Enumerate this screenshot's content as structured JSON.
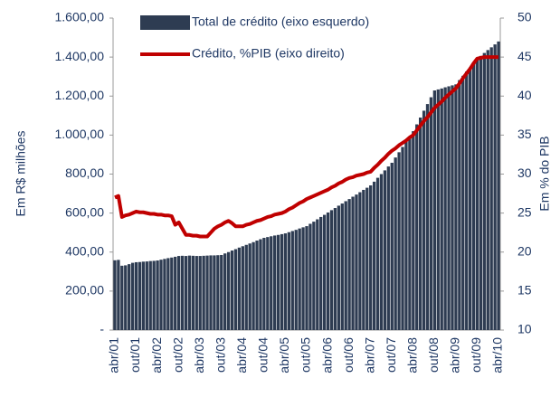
{
  "chart_data": {
    "type": "bar-line",
    "y_label": "Em R$ milhões",
    "y2_label": "Em % do PIB",
    "categories": [
      "abr/01",
      null,
      null,
      null,
      null,
      null,
      "out/01",
      null,
      null,
      null,
      null,
      null,
      "abr/02",
      null,
      null,
      null,
      null,
      null,
      "out/02",
      null,
      null,
      null,
      null,
      null,
      "abr/03",
      null,
      null,
      null,
      null,
      null,
      "out/03",
      null,
      null,
      null,
      null,
      null,
      "abr/04",
      null,
      null,
      null,
      null,
      null,
      "out/04",
      null,
      null,
      null,
      null,
      null,
      "abr/05",
      null,
      null,
      null,
      null,
      null,
      "out/05",
      null,
      null,
      null,
      null,
      null,
      "abr/06",
      null,
      null,
      null,
      null,
      null,
      "out/06",
      null,
      null,
      null,
      null,
      null,
      "abr/07",
      null,
      null,
      null,
      null,
      null,
      "out/07",
      null,
      null,
      null,
      null,
      null,
      "abr/08",
      null,
      null,
      null,
      null,
      null,
      "out/08",
      null,
      null,
      null,
      null,
      null,
      "abr/09",
      null,
      null,
      null,
      null,
      null,
      "out/09",
      null,
      null,
      null,
      null,
      null,
      "abr/10"
    ],
    "series": [
      {
        "name": "Total de crédito (eixo esquerdo)",
        "type": "bar",
        "color": "#2e3c52",
        "values": [
          358,
          360,
          330,
          332,
          338,
          345,
          348,
          349,
          351,
          352,
          354,
          355,
          357,
          361,
          365,
          369,
          372,
          376,
          380,
          381,
          380,
          382,
          381,
          380,
          380,
          381,
          382,
          383,
          383,
          384,
          385,
          393,
          400,
          408,
          415,
          423,
          430,
          437,
          444,
          451,
          459,
          466,
          473,
          477,
          481,
          485,
          488,
          492,
          496,
          502,
          508,
          514,
          521,
          527,
          533,
          545,
          556,
          568,
          580,
          591,
          603,
          615,
          626,
          638,
          649,
          661,
          672,
          684,
          695,
          707,
          719,
          730,
          742,
          761,
          781,
          800,
          819,
          839,
          858,
          885,
          912,
          939,
          966,
          993,
          1020,
          1055,
          1090,
          1125,
          1159,
          1194,
          1229,
          1234,
          1239,
          1245,
          1250,
          1255,
          1260,
          1282,
          1304,
          1326,
          1347,
          1369,
          1391,
          1406,
          1421,
          1436,
          1450,
          1465,
          1480
        ]
      },
      {
        "name": "Crédito, %PIB (eixo direito)",
        "type": "line",
        "axis": "y2",
        "color": "#c00000",
        "values": [
          27,
          27.2,
          24.5,
          24.7,
          24.8,
          25,
          25.2,
          25.1,
          25.1,
          25,
          24.9,
          24.9,
          24.8,
          24.8,
          24.7,
          24.7,
          24.6,
          23.5,
          23.8,
          23,
          22.2,
          22.2,
          22.1,
          22.1,
          22,
          22,
          22,
          22.5,
          23,
          23.3,
          23.5,
          23.8,
          24,
          23.7,
          23.3,
          23.3,
          23.3,
          23.5,
          23.6,
          23.8,
          24,
          24.1,
          24.3,
          24.5,
          24.6,
          24.8,
          24.9,
          25,
          25.2,
          25.5,
          25.7,
          26,
          26.3,
          26.5,
          26.8,
          27,
          27.2,
          27.4,
          27.6,
          27.8,
          28,
          28.3,
          28.5,
          28.8,
          29,
          29.3,
          29.5,
          29.6,
          29.8,
          29.9,
          30,
          30.2,
          30.3,
          30.8,
          31.2,
          31.7,
          32.1,
          32.6,
          33,
          33.3,
          33.7,
          34,
          34.3,
          34.7,
          35,
          35.6,
          36.2,
          36.8,
          37.3,
          37.9,
          38.5,
          38.9,
          39.3,
          39.8,
          40.2,
          40.6,
          41,
          41.6,
          42.3,
          42.9,
          43.5,
          44.2,
          44.8,
          44.9,
          45,
          45,
          45,
          45,
          45
        ]
      }
    ],
    "ylim": [
      0,
      1600
    ],
    "yticks": [
      {
        "value": 0,
        "label": "-"
      },
      {
        "value": 200,
        "label": "200,00"
      },
      {
        "value": 400,
        "label": "400,00"
      },
      {
        "value": 600,
        "label": "600,00"
      },
      {
        "value": 800,
        "label": "800,00"
      },
      {
        "value": 1000,
        "label": "1.000,00"
      },
      {
        "value": 1200,
        "label": "1.200,00"
      },
      {
        "value": 1400,
        "label": "1.400,00"
      },
      {
        "value": 1600,
        "label": "1.600,00"
      }
    ],
    "y2lim": [
      10,
      50
    ],
    "y2ticks": [
      10,
      15,
      20,
      25,
      30,
      35,
      40,
      45,
      50
    ]
  }
}
